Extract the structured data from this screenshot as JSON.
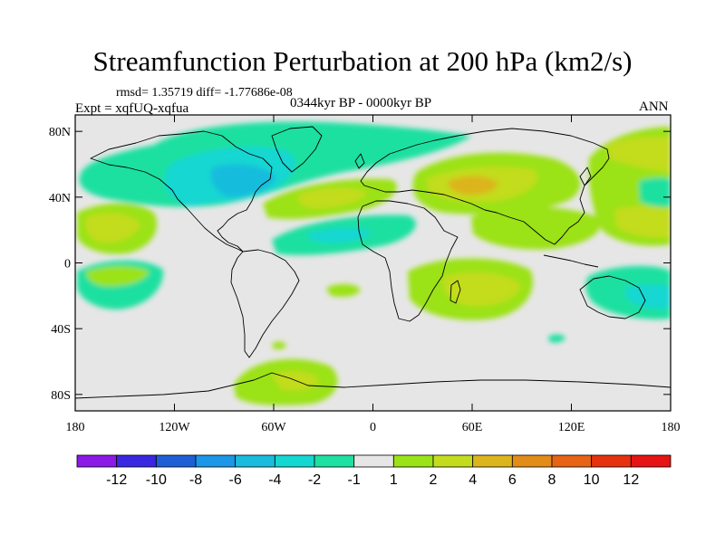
{
  "title": "Streamfunction Perturbation at 200 hPa (km2/s)",
  "stats": "rmsd= 1.35719 diff= -1.77686e-08",
  "experiment": "Expt = xqfUQ-xqfua",
  "period": "0344kyr BP - 0000kyr BP",
  "season": "ANN",
  "axes": {
    "lon_ticks": [
      {
        "lon": -180,
        "label": "180"
      },
      {
        "lon": -120,
        "label": "120W"
      },
      {
        "lon": -60,
        "label": "60W"
      },
      {
        "lon": 0,
        "label": "0"
      },
      {
        "lon": 60,
        "label": "60E"
      },
      {
        "lon": 120,
        "label": "120E"
      },
      {
        "lon": 180,
        "label": "180"
      }
    ],
    "lat_ticks": [
      {
        "lat": 80,
        "label": "80N"
      },
      {
        "lat": 40,
        "label": "40N"
      },
      {
        "lat": 0,
        "label": "0"
      },
      {
        "lat": -40,
        "label": "40S"
      },
      {
        "lat": -80,
        "label": "80S"
      }
    ]
  },
  "colorbar": {
    "labels": [
      "-12",
      "-10",
      "-8",
      "-6",
      "-4",
      "-2",
      "-1",
      "1",
      "2",
      "4",
      "6",
      "8",
      "10",
      "12"
    ],
    "colors": [
      "#8c19e6",
      "#3a28e0",
      "#1f5fd6",
      "#1c96e6",
      "#19bcdc",
      "#15d7d2",
      "#1ee0a0",
      "#e6e6e6",
      "#9be219",
      "#c3dc1e",
      "#dcb41e",
      "#e28c19",
      "#e66414",
      "#e6320f",
      "#e61414"
    ]
  }
}
